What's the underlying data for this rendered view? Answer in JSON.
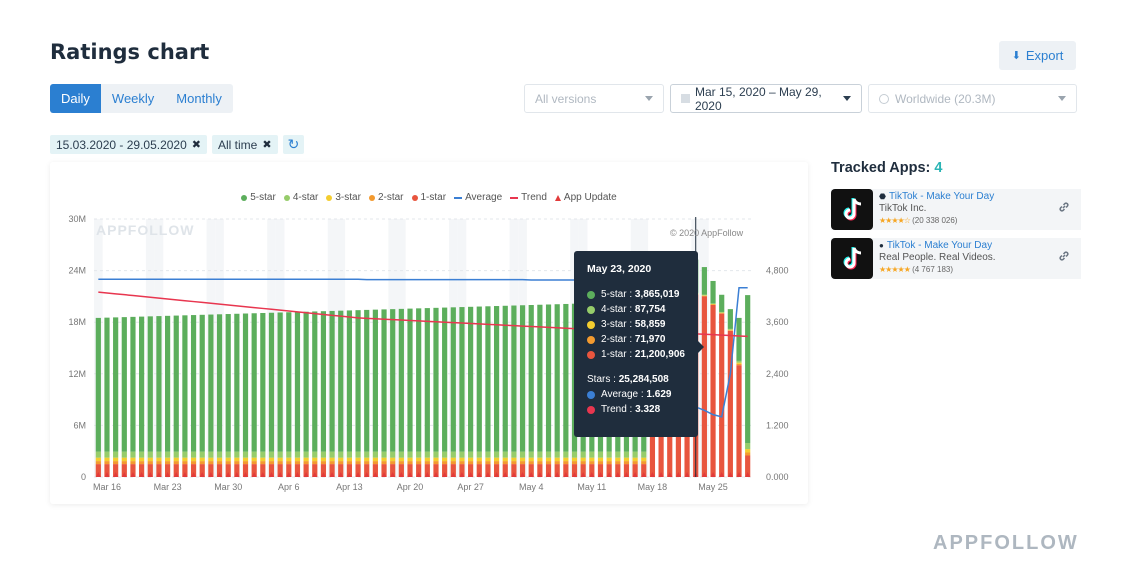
{
  "header": {
    "title": "Ratings chart",
    "export_label": "Export"
  },
  "period_tabs": [
    {
      "label": "Daily",
      "active": true
    },
    {
      "label": "Weekly",
      "active": false
    },
    {
      "label": "Monthly",
      "active": false
    }
  ],
  "selects": {
    "versions": "All versions",
    "date_range": "Mar 15, 2020 – May 29, 2020",
    "country": "Worldwide (20.3M)"
  },
  "filters": {
    "date_chip": "15.03.2020 - 29.05.2020",
    "time_chip": "All time"
  },
  "legend": {
    "five_star": "5-star",
    "four_star": "4-star",
    "three_star": "3-star",
    "two_star": "2-star",
    "one_star": "1-star",
    "average": "Average",
    "trend": "Trend",
    "app_update": "App Update"
  },
  "chart_watermark": "APPFOLLOW",
  "chart_copyright": "© 2020 AppFollow",
  "colors": {
    "five_star": "#5cae5c",
    "four_star": "#96cc6a",
    "three_star": "#f4cd2f",
    "two_star": "#f39a2f",
    "one_star": "#e8553e",
    "average": "#3b7fd4",
    "trend": "#e8364f",
    "accent": "#2b7fd1"
  },
  "tooltip": {
    "date": "May 23, 2020",
    "rows": [
      {
        "label": "5-star",
        "value": "3,865,019",
        "color": "#5cae5c"
      },
      {
        "label": "4-star",
        "value": "87,754",
        "color": "#96cc6a"
      },
      {
        "label": "3-star",
        "value": "58,859",
        "color": "#f4cd2f"
      },
      {
        "label": "2-star",
        "value": "71,970",
        "color": "#f39a2f"
      },
      {
        "label": "1-star",
        "value": "21,200,906",
        "color": "#e8553e"
      }
    ],
    "stars_label": "Stars",
    "stars_value": "25,284,508",
    "average_label": "Average",
    "average_value": "1.629",
    "trend_label": "Trend",
    "trend_value": "3.328"
  },
  "chart_data": {
    "type": "bar",
    "x": [
      "Mar 15",
      "Mar 16",
      "Mar 17",
      "Mar 18",
      "Mar 19",
      "Mar 20",
      "Mar 21",
      "Mar 22",
      "Mar 23",
      "Mar 24",
      "Mar 25",
      "Mar 26",
      "Mar 27",
      "Mar 28",
      "Mar 29",
      "Mar 30",
      "Mar 31",
      "Apr 1",
      "Apr 2",
      "Apr 3",
      "Apr 4",
      "Apr 5",
      "Apr 6",
      "Apr 7",
      "Apr 8",
      "Apr 9",
      "Apr 10",
      "Apr 11",
      "Apr 12",
      "Apr 13",
      "Apr 14",
      "Apr 15",
      "Apr 16",
      "Apr 17",
      "Apr 18",
      "Apr 19",
      "Apr 20",
      "Apr 21",
      "Apr 22",
      "Apr 23",
      "Apr 24",
      "Apr 25",
      "Apr 26",
      "Apr 27",
      "Apr 28",
      "Apr 29",
      "Apr 30",
      "May 1",
      "May 2",
      "May 3",
      "May 4",
      "May 5",
      "May 6",
      "May 7",
      "May 8",
      "May 9",
      "May 10",
      "May 11",
      "May 12",
      "May 13",
      "May 14",
      "May 15",
      "May 16",
      "May 17",
      "May 18",
      "May 19",
      "May 20",
      "May 21",
      "May 22",
      "May 23",
      "May 24",
      "May 25",
      "May 26",
      "May 27",
      "May 28",
      "May 29"
    ],
    "x_tick_labels": [
      "Mar 16",
      "Mar 23",
      "Mar 30",
      "Apr 6",
      "Apr 13",
      "Apr 20",
      "Apr 27",
      "May 4",
      "May 11",
      "May 18",
      "May 25"
    ],
    "y_tick_labels": [
      "0",
      "6M",
      "12M",
      "18M",
      "24M",
      "30M"
    ],
    "y2_tick_labels": [
      "0.000",
      "1.200",
      "2,400",
      "3,600",
      "4,800"
    ],
    "ylim": [
      0,
      30000000
    ],
    "y2lim": [
      0,
      6
    ],
    "series": [
      {
        "name": "5-star",
        "values": [
          15550000,
          15580000,
          15610000,
          15640000,
          15670000,
          15700000,
          15730000,
          15760000,
          15790000,
          15820000,
          15850000,
          15880000,
          15910000,
          15940000,
          15970000,
          16000000,
          16030000,
          16060000,
          16090000,
          16120000,
          16150000,
          16180000,
          16210000,
          16240000,
          16270000,
          16300000,
          16330000,
          16360000,
          16390000,
          16420000,
          16450000,
          16480000,
          16510000,
          16540000,
          16570000,
          16600000,
          16630000,
          16660000,
          16690000,
          16720000,
          16750000,
          16780000,
          16810000,
          16840000,
          16870000,
          16900000,
          16930000,
          16960000,
          16990000,
          17020000,
          17050000,
          17080000,
          17110000,
          17140000,
          17170000,
          17200000,
          17230000,
          17260000,
          17290000,
          17320000,
          17350000,
          17380000,
          17410000,
          17440000,
          12200000,
          9800000,
          8500000,
          7300000,
          5900000,
          3865019,
          3200000,
          2600000,
          2000000,
          2300000,
          5000000,
          17200000
        ]
      },
      {
        "name": "4-star",
        "values": [
          700000,
          700000,
          700000,
          700000,
          700000,
          700000,
          700000,
          700000,
          700000,
          700000,
          700000,
          700000,
          700000,
          700000,
          700000,
          700000,
          700000,
          700000,
          700000,
          700000,
          700000,
          700000,
          700000,
          700000,
          700000,
          700000,
          700000,
          700000,
          700000,
          700000,
          700000,
          700000,
          700000,
          700000,
          700000,
          700000,
          700000,
          700000,
          700000,
          700000,
          700000,
          700000,
          700000,
          700000,
          700000,
          700000,
          700000,
          700000,
          700000,
          700000,
          700000,
          700000,
          700000,
          700000,
          700000,
          700000,
          700000,
          700000,
          700000,
          700000,
          700000,
          700000,
          700000,
          700000,
          300000,
          200000,
          150000,
          100000,
          90000,
          87754,
          85000,
          80000,
          80000,
          90000,
          200000,
          700000
        ]
      },
      {
        "name": "3-star",
        "values": [
          400000,
          400000,
          400000,
          400000,
          400000,
          400000,
          400000,
          400000,
          400000,
          400000,
          400000,
          400000,
          400000,
          400000,
          400000,
          400000,
          400000,
          400000,
          400000,
          400000,
          400000,
          400000,
          400000,
          400000,
          400000,
          400000,
          400000,
          400000,
          400000,
          400000,
          400000,
          400000,
          400000,
          400000,
          400000,
          400000,
          400000,
          400000,
          400000,
          400000,
          400000,
          400000,
          400000,
          400000,
          400000,
          400000,
          400000,
          400000,
          400000,
          400000,
          400000,
          400000,
          400000,
          400000,
          400000,
          400000,
          400000,
          400000,
          400000,
          400000,
          400000,
          400000,
          400000,
          400000,
          150000,
          100000,
          80000,
          70000,
          60000,
          58859,
          55000,
          50000,
          50000,
          60000,
          150000,
          400000
        ]
      },
      {
        "name": "2-star",
        "values": [
          350000,
          350000,
          350000,
          350000,
          350000,
          350000,
          350000,
          350000,
          350000,
          350000,
          350000,
          350000,
          350000,
          350000,
          350000,
          350000,
          350000,
          350000,
          350000,
          350000,
          350000,
          350000,
          350000,
          350000,
          350000,
          350000,
          350000,
          350000,
          350000,
          350000,
          350000,
          350000,
          350000,
          350000,
          350000,
          350000,
          350000,
          350000,
          350000,
          350000,
          350000,
          350000,
          350000,
          350000,
          350000,
          350000,
          350000,
          350000,
          350000,
          350000,
          350000,
          350000,
          350000,
          350000,
          350000,
          350000,
          350000,
          350000,
          350000,
          350000,
          350000,
          350000,
          350000,
          350000,
          120000,
          100000,
          90000,
          80000,
          75000,
          71970,
          70000,
          65000,
          60000,
          70000,
          150000,
          350000
        ]
      },
      {
        "name": "1-star",
        "values": [
          1500000,
          1500000,
          1500000,
          1500000,
          1500000,
          1500000,
          1500000,
          1500000,
          1500000,
          1500000,
          1500000,
          1500000,
          1500000,
          1500000,
          1500000,
          1500000,
          1500000,
          1500000,
          1500000,
          1500000,
          1500000,
          1500000,
          1500000,
          1500000,
          1500000,
          1500000,
          1500000,
          1500000,
          1500000,
          1500000,
          1500000,
          1500000,
          1500000,
          1500000,
          1500000,
          1500000,
          1500000,
          1500000,
          1500000,
          1500000,
          1500000,
          1500000,
          1500000,
          1500000,
          1500000,
          1500000,
          1500000,
          1500000,
          1500000,
          1500000,
          1500000,
          1500000,
          1500000,
          1500000,
          1500000,
          1500000,
          1500000,
          1500000,
          1500000,
          1500000,
          1500000,
          1500000,
          1500000,
          1500000,
          13000000,
          15500000,
          17000000,
          18500000,
          19500000,
          21200906,
          21000000,
          20000000,
          19000000,
          17000000,
          13000000,
          2500000
        ]
      }
    ],
    "average": [
      4.6,
      4.6,
      4.6,
      4.6,
      4.6,
      4.6,
      4.6,
      4.6,
      4.6,
      4.6,
      4.6,
      4.6,
      4.6,
      4.6,
      4.6,
      4.6,
      4.6,
      4.6,
      4.6,
      4.6,
      4.6,
      4.6,
      4.6,
      4.6,
      4.6,
      4.6,
      4.6,
      4.6,
      4.6,
      4.6,
      4.6,
      4.59,
      4.59,
      4.59,
      4.59,
      4.59,
      4.59,
      4.59,
      4.59,
      4.59,
      4.59,
      4.59,
      4.59,
      4.59,
      4.59,
      4.59,
      4.59,
      4.59,
      4.59,
      4.59,
      4.58,
      4.58,
      4.58,
      4.58,
      4.58,
      4.58,
      4.58,
      4.58,
      4.58,
      4.58,
      4.58,
      4.58,
      4.58,
      4.58,
      2.4,
      2.0,
      1.8,
      1.7,
      1.65,
      1.629,
      1.55,
      1.45,
      1.4,
      2.4,
      4.4,
      4.4
    ],
    "trend": [
      4.3,
      4.28,
      4.26,
      4.24,
      4.22,
      4.2,
      4.18,
      4.16,
      4.14,
      4.12,
      4.1,
      4.08,
      4.06,
      4.04,
      4.02,
      4.0,
      3.98,
      3.96,
      3.94,
      3.92,
      3.9,
      3.88,
      3.86,
      3.84,
      3.82,
      3.8,
      3.78,
      3.76,
      3.74,
      3.72,
      3.7,
      3.69,
      3.68,
      3.67,
      3.66,
      3.65,
      3.64,
      3.63,
      3.62,
      3.61,
      3.6,
      3.59,
      3.58,
      3.57,
      3.56,
      3.55,
      3.54,
      3.53,
      3.52,
      3.51,
      3.5,
      3.49,
      3.48,
      3.47,
      3.46,
      3.45,
      3.44,
      3.43,
      3.42,
      3.41,
      3.4,
      3.39,
      3.38,
      3.37,
      3.36,
      3.35,
      3.34,
      3.335,
      3.33,
      3.328,
      3.32,
      3.31,
      3.3,
      3.29,
      3.28,
      3.27
    ],
    "grid": true,
    "legend_position": "top"
  },
  "tracked": {
    "title": "Tracked Apps:",
    "count": "4",
    "apps": [
      {
        "name": "TikTok - Make Your Day",
        "subtitle": "TikTok Inc.",
        "stars": "★★★★☆",
        "rating_count": "(20 338 026)",
        "platform_icon": "android-icon"
      },
      {
        "name": "TikTok - Make Your Day",
        "subtitle": "Real People. Real Videos.",
        "stars": "★★★★★",
        "rating_count": "(4 767 183)",
        "platform_icon": "apple-icon"
      }
    ]
  },
  "brand_footer": "APPFOLLOW"
}
